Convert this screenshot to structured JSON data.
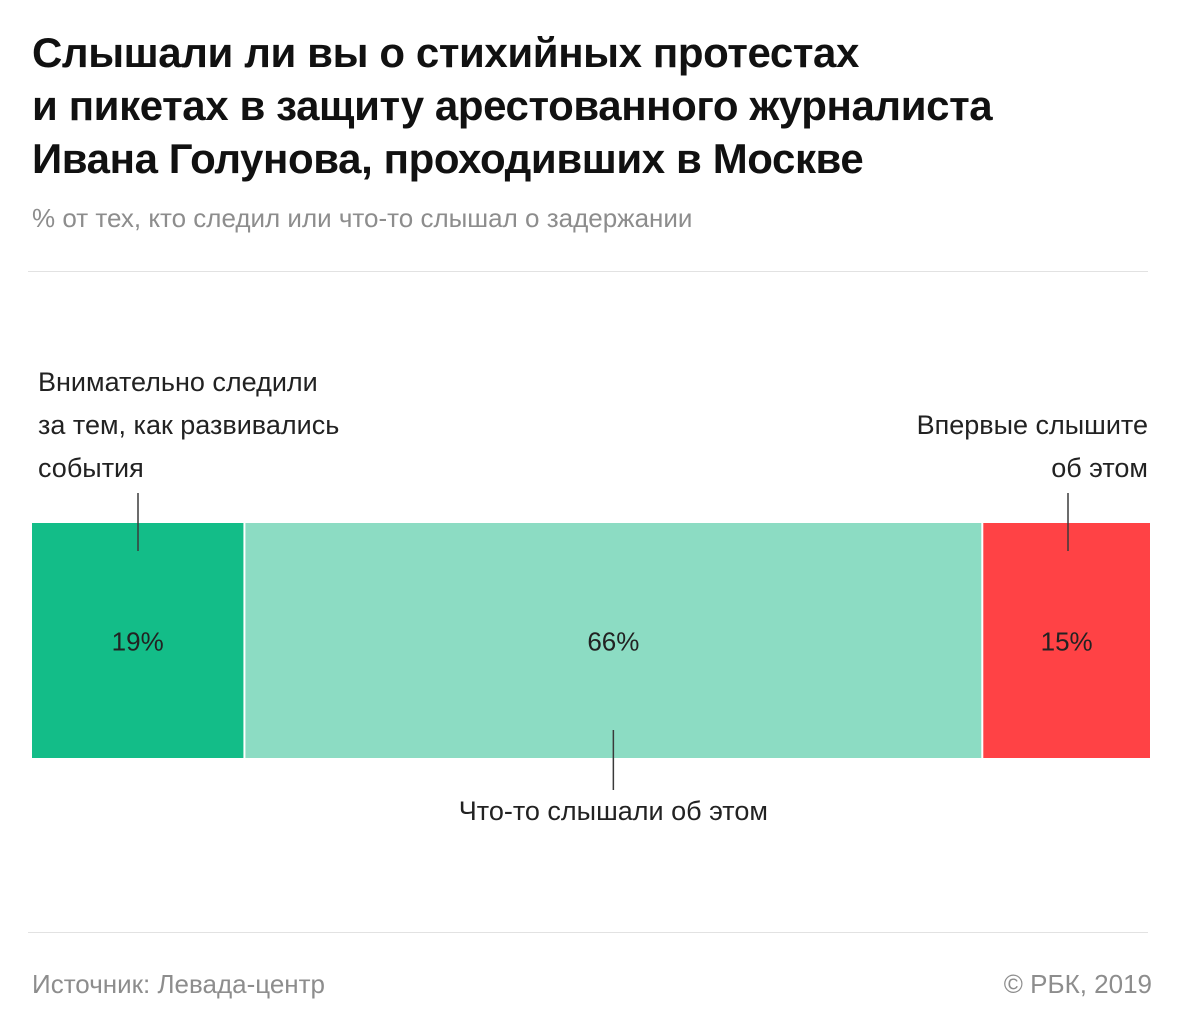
{
  "chart_data": {
    "type": "bar",
    "layout": "stacked-horizontal-100",
    "title": "Слышали ли вы о стихийных протестах и пикетах в защиту арестованного журналиста Ивана Голунова, проходивших в Москве",
    "title_lines": [
      "Слышали ли вы о стихийных протестах",
      "и пикетах в защиту арестованного журналиста",
      "Ивана Голунова, проходивших в Москве"
    ],
    "subtitle": "% от тех, кто следил или что-то слышал о задержании",
    "xlim": [
      0,
      100
    ],
    "unit": "%",
    "grid": false,
    "legend": "none",
    "segments": [
      {
        "name": "Внимательно следили за тем, как развивались события",
        "label_lines": [
          "Внимательно следили",
          "за тем, как развивались",
          "события"
        ],
        "label_position": "above-left",
        "value": 19,
        "value_label": "19%",
        "color": "#13bd88"
      },
      {
        "name": "Что-то слышали об этом",
        "label_lines": [
          "Что-то слышали об этом"
        ],
        "label_position": "below-center",
        "value": 66,
        "value_label": "66%",
        "color": "#8cdcc3"
      },
      {
        "name": "Впервые слышите об этом",
        "label_lines": [
          "Впервые слышите",
          "об этом"
        ],
        "label_position": "above-right",
        "value": 15,
        "value_label": "15%",
        "color": "#ff4245"
      }
    ]
  },
  "footer": {
    "source": "Источник: Левада-центр",
    "copyright": "© РБК, 2019"
  }
}
